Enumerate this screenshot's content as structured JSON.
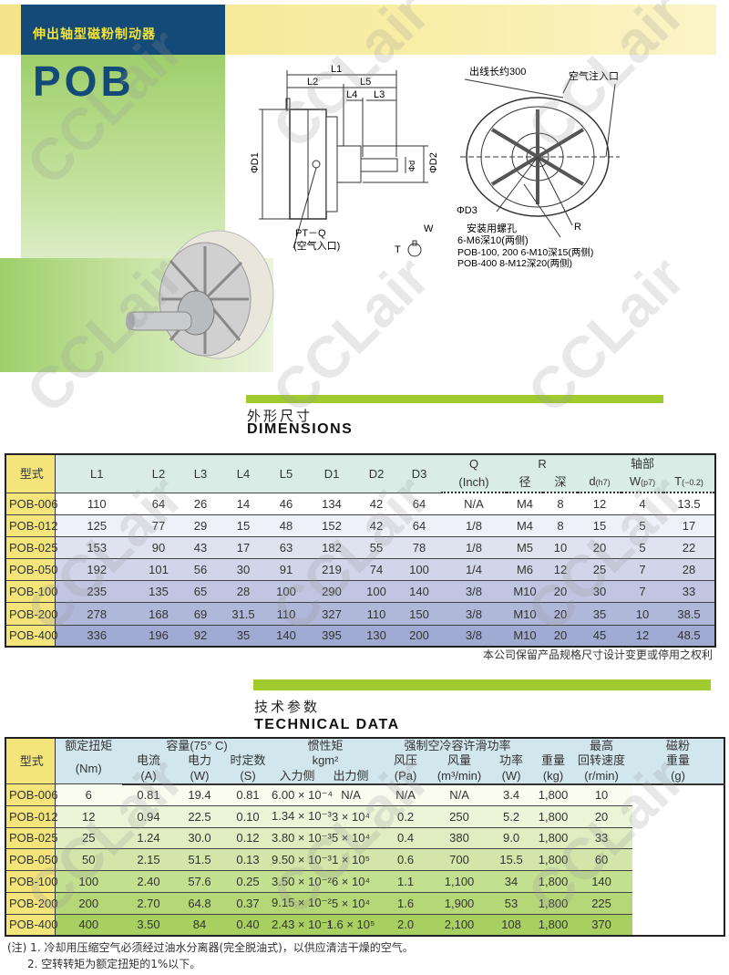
{
  "header": {
    "subtitle": "伸出轴型磁粉制动器",
    "model": "POB",
    "watermark": "CCLair"
  },
  "colors": {
    "title_bg": "#134a78",
    "title_text": "#f3e33a",
    "accent_green": "#9fcb2e",
    "header_yellow": "#f3e57a"
  },
  "diagram": {
    "side": {
      "L1": "L1",
      "L2": "L2",
      "L3": "L3",
      "L4": "L4",
      "L5": "L5",
      "D1": "ΦD1",
      "D2": "ΦD2",
      "d": "Φd",
      "port": "PT－Q",
      "port_cn": "(空气入口)",
      "W": "W",
      "T": "T"
    },
    "front": {
      "cable": "出线长约300",
      "air": "空气注入口",
      "D3": "ΦD3",
      "R": "R",
      "holes": "安装用螺孔",
      "holes1": "6-M6深10(两侧)",
      "holes2": "POB-100, 200 6-M10深15(两侧)",
      "holes3": "POB-400 8-M12深20(两侧)"
    }
  },
  "dimensions": {
    "title_cn": "外形尺寸",
    "title_en": "DIMENSIONS",
    "headers": {
      "model": "型式",
      "L1": "L1",
      "L2": "L2",
      "L3": "L3",
      "L4": "L4",
      "L5": "L5",
      "D1": "D1",
      "D2": "D2",
      "D3": "D3",
      "Q": "Q",
      "Q_unit": "(Inch)",
      "R": "R",
      "R_dia": "径",
      "R_depth": "深",
      "d": "d",
      "d_tol": "(h7)",
      "shaft": "轴部",
      "W": "W",
      "W_tol": "(p7)",
      "T": "T",
      "T_tol": "(−0.2)"
    },
    "rows": [
      [
        "POB-006",
        "110",
        "64",
        "26",
        "14",
        "46",
        "134",
        "42",
        "64",
        "N/A",
        "M4",
        "8",
        "12",
        "4",
        "13.5"
      ],
      [
        "POB-012",
        "125",
        "77",
        "29",
        "15",
        "48",
        "152",
        "42",
        "64",
        "1/8",
        "M4",
        "8",
        "15",
        "5",
        "17"
      ],
      [
        "POB-025",
        "153",
        "90",
        "43",
        "17",
        "63",
        "182",
        "55",
        "78",
        "1/8",
        "M5",
        "10",
        "20",
        "5",
        "22"
      ],
      [
        "POB-050",
        "192",
        "101",
        "56",
        "30",
        "91",
        "219",
        "74",
        "100",
        "1/4",
        "M6",
        "12",
        "25",
        "7",
        "28"
      ],
      [
        "POB-100",
        "235",
        "135",
        "65",
        "28",
        "100",
        "290",
        "100",
        "140",
        "3/8",
        "M10",
        "20",
        "30",
        "7",
        "33"
      ],
      [
        "POB-200",
        "278",
        "168",
        "69",
        "31.5",
        "110",
        "327",
        "110",
        "150",
        "3/8",
        "M10",
        "20",
        "35",
        "10",
        "38.5"
      ],
      [
        "POB-400",
        "336",
        "196",
        "92",
        "35",
        "140",
        "395",
        "130",
        "200",
        "3/8",
        "M10",
        "20",
        "45",
        "12",
        "48.5"
      ]
    ],
    "note": "本公司保留产品规格尺寸设计变更或停用之权利"
  },
  "technical": {
    "title_cn": "技术参数",
    "title_en": "TECHNICAL DATA",
    "headers": {
      "model": "型式",
      "torque": "额定扭矩",
      "torque_unit": "(Nm)",
      "capacity": "容量(75° C)",
      "current": "电流",
      "current_unit": "(A)",
      "power": "电力",
      "power_unit": "(W)",
      "timeconst": "时定数",
      "timeconst_unit": "(S)",
      "inertia": "惯性矩",
      "inertia_unit": "kgm²",
      "input_side": "入力侧",
      "output_side": "出力侧",
      "cooling": "强制空冷容许滑功率",
      "pressure": "风压",
      "pressure_unit": "(Pa)",
      "airflow": "风量",
      "airflow_unit": "(m³/min)",
      "slip_power": "功率",
      "slip_power_unit": "(W)",
      "weight": "重量",
      "weight_unit": "(kg)",
      "maxspeed1": "最高",
      "maxspeed2": "回转速度",
      "maxspeed_unit": "(r/min)",
      "powder1": "磁粉",
      "powder2": "重量",
      "powder_unit": "(g)"
    },
    "rows": [
      [
        "POB-006",
        "6",
        "0.81",
        "19.4",
        "0.81",
        "6.00 × 10⁻⁴",
        "N/A",
        "N/A",
        "N/A",
        "3.4",
        "1,800",
        "10"
      ],
      [
        "POB-012",
        "12",
        "0.94",
        "22.5",
        "0.10",
        "1.34 × 10⁻³",
        "3 × 10⁴",
        "0.2",
        "250",
        "5.2",
        "1,800",
        "20"
      ],
      [
        "POB-025",
        "25",
        "1.24",
        "30.0",
        "0.12",
        "3.80 × 10⁻³",
        "5 × 10⁴",
        "0.4",
        "380",
        "9.0",
        "1,800",
        "33"
      ],
      [
        "POB-050",
        "50",
        "2.15",
        "51.5",
        "0.13",
        "9.50 × 10⁻³",
        "1 × 10⁵",
        "0.6",
        "700",
        "15.5",
        "1,800",
        "60"
      ],
      [
        "POB-100",
        "100",
        "2.40",
        "57.6",
        "0.25",
        "3.50 × 10⁻²",
        "6 × 10⁴",
        "1.1",
        "1,100",
        "34",
        "1,800",
        "140"
      ],
      [
        "POB-200",
        "200",
        "2.70",
        "64.8",
        "0.37",
        "9.15 × 10⁻²",
        "5 × 10⁴",
        "1.6",
        "1,900",
        "53",
        "1,800",
        "225"
      ],
      [
        "POB-400",
        "400",
        "3.50",
        "84",
        "0.40",
        "2.43 × 10⁻¹",
        "1.6 × 10⁵",
        "2.0",
        "2,100",
        "108",
        "1,800",
        "370"
      ]
    ],
    "notes": [
      "(注) 1. 冷却用压缩空气必须经过油水分离器(完全脱油式)，以供应清洁干燥的空气。",
      "2. 空转转矩为额定扭矩的1%以下。"
    ]
  }
}
